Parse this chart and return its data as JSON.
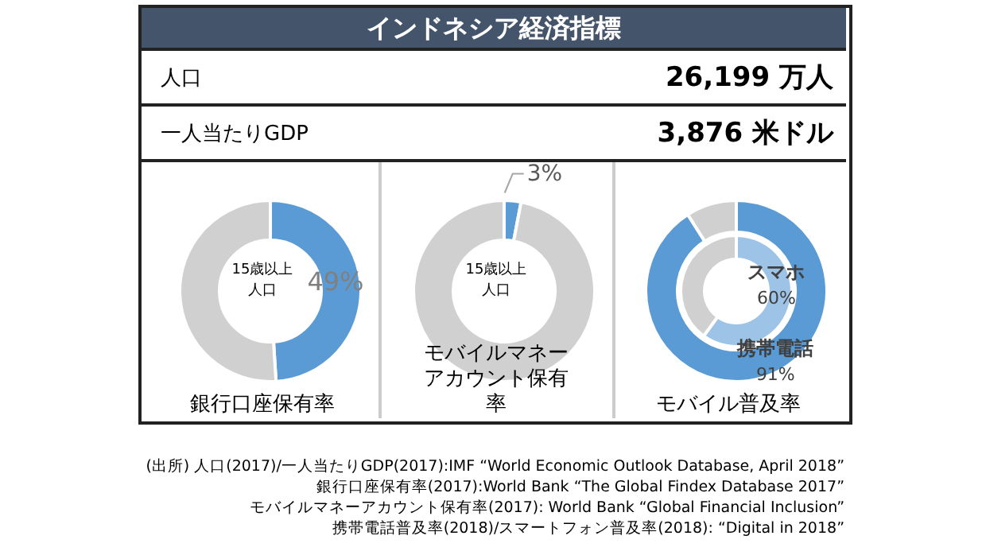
{
  "chart_data": [
    {
      "type": "other",
      "title": "インドネシア経済指標",
      "categories": [
        "人口",
        "一人当たりGDP"
      ],
      "values": [
        26199,
        3876
      ],
      "value_labels": [
        "26,199 万人",
        "3,876 米ドル"
      ],
      "annotations": [
        "(出所) 人口(2017)/一人当たりGDP(2017):IMF “World Economic Outlook Database, April 2018”",
        "銀行口座保有率(2017):World Bank “The Global Findex Database 2017”",
        "モバイルマネーアカウント保有率(2017): World Bank “Global Financial Inclusion”",
        "携帯電話普及率(2018)/スマートフォン普及率(2018): “Digital in 2018”"
      ]
    },
    {
      "type": "donut",
      "title": "銀行口座保有率",
      "categories": [
        null,
        null
      ],
      "values": [
        49,
        51
      ],
      "colors": [
        "#5b9bd5",
        "#d0d0d0"
      ],
      "value_labels": [
        "49%",
        null
      ],
      "annotations": [
        "15歳以上人口"
      ]
    },
    {
      "type": "donut",
      "title": "モバイルマネーアカウント保有率",
      "categories": [
        null,
        null
      ],
      "values": [
        3,
        97
      ],
      "colors": [
        "#5b9bd5",
        "#d0d0d0"
      ],
      "value_labels": [
        "3%",
        null
      ],
      "annotations": [
        "15歳以上人口"
      ]
    },
    {
      "type": "donut",
      "title": "モバイル普及率",
      "categories": [
        null,
        null
      ],
      "series": [
        {
          "name": "携帯電話",
          "values": [
            91,
            9
          ],
          "colors": [
            "#5b9bd5",
            "#d0d0d0"
          ],
          "value_labels": [
            "91%",
            null
          ]
        },
        {
          "name": "スマホ",
          "values": [
            60,
            40
          ],
          "colors": [
            "#9dc3e6",
            "#d0d0d0"
          ],
          "value_labels": [
            "60%",
            null
          ]
        }
      ]
    }
  ]
}
